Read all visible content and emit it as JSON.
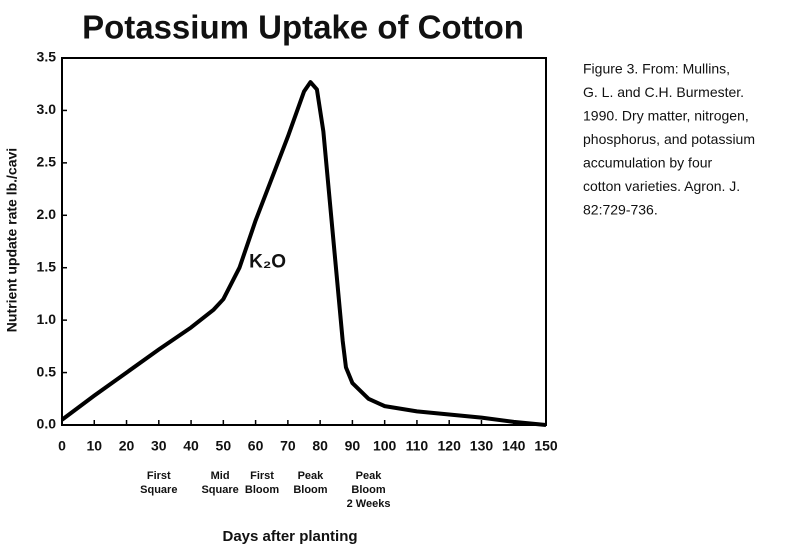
{
  "chart_data": {
    "type": "line",
    "title": "Potassium Uptake of Cotton",
    "xlabel": "Days after planting",
    "ylabel": "Nutrient update rate lb./cavi",
    "annotation": {
      "text": "K₂O",
      "x": 58,
      "y": 1.55
    },
    "caption": [
      "Figure 3.  From: Mullins,",
      "G. L. and C.H. Burmester.",
      "1990. Dry matter, nitrogen,",
      "phosphorus, and potassium",
      "accumulation by four",
      "cotton varieties. Agron. J.",
      "82:729-736."
    ],
    "stages": [
      {
        "x": 30,
        "lines": [
          "First",
          "Square"
        ]
      },
      {
        "x": 49,
        "lines": [
          "Mid",
          "Square"
        ]
      },
      {
        "x": 62,
        "lines": [
          "First",
          "Bloom"
        ]
      },
      {
        "x": 77,
        "lines": [
          "Peak",
          "Bloom"
        ]
      },
      {
        "x": 95,
        "lines": [
          "Peak",
          "Bloom",
          "2 Weeks"
        ]
      }
    ],
    "color": "#000000",
    "x": [
      0,
      10,
      20,
      30,
      40,
      47,
      50,
      55,
      60,
      65,
      70,
      75,
      77,
      79,
      81,
      84,
      87,
      88,
      90,
      95,
      100,
      110,
      120,
      130,
      140,
      150
    ],
    "values": [
      0.05,
      0.28,
      0.5,
      0.72,
      0.93,
      1.1,
      1.2,
      1.5,
      1.95,
      2.35,
      2.75,
      3.18,
      3.27,
      3.2,
      2.8,
      1.8,
      0.8,
      0.55,
      0.4,
      0.25,
      0.18,
      0.13,
      0.1,
      0.07,
      0.03,
      0.0
    ],
    "xlim": [
      0,
      150
    ],
    "xticks": [
      0,
      10,
      20,
      30,
      40,
      50,
      60,
      70,
      80,
      90,
      100,
      110,
      120,
      130,
      140,
      150
    ],
    "ylim": [
      0,
      3.5
    ],
    "yticks": [
      {
        "value": 0,
        "label": "0.0"
      },
      0.5,
      {
        "value": 1,
        "label": "1.0"
      },
      1.5,
      {
        "value": 2,
        "label": "2.0"
      },
      2.5,
      {
        "value": 3,
        "label": "3.0"
      },
      3.5
    ]
  }
}
